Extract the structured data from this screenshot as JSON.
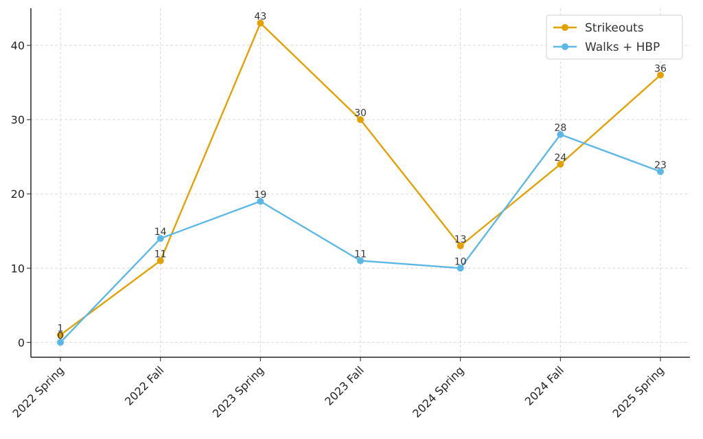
{
  "chart_data": {
    "type": "line",
    "categories": [
      "2022 Spring",
      "2022 Fall",
      "2023 Spring",
      "2023 Fall",
      "2024 Spring",
      "2024 Fall",
      "2025 Spring"
    ],
    "series": [
      {
        "name": "Strikeouts",
        "color": "#E1A100",
        "values": [
          1,
          11,
          43,
          30,
          13,
          24,
          36
        ]
      },
      {
        "name": "Walks + HBP",
        "color": "#5BB8E6",
        "values": [
          0,
          14,
          19,
          11,
          10,
          28,
          23
        ]
      }
    ],
    "title": "",
    "xlabel": "",
    "ylabel": "",
    "ylim": [
      -2,
      45
    ],
    "yticks": [
      0,
      10,
      20,
      30,
      40
    ],
    "grid": true,
    "legend": "top-right",
    "data_labels": true
  }
}
